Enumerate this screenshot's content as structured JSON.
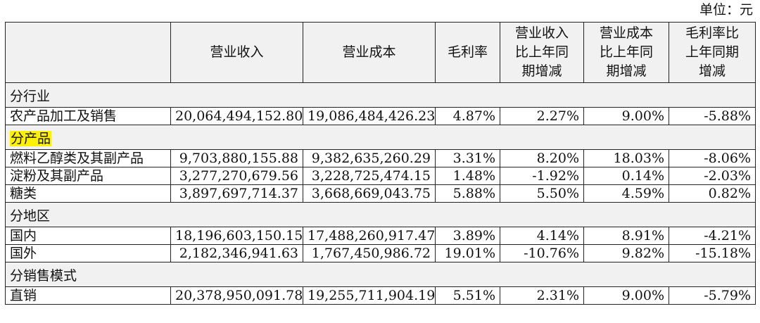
{
  "unit_label": "单位：元",
  "headers": {
    "blank": "",
    "revenue": "营业收入",
    "cost": "营业成本",
    "margin": "毛利率",
    "revenue_yoy": [
      "营业收入",
      "比上年同",
      "期增减"
    ],
    "cost_yoy": [
      "营业成本",
      "比上年同",
      "期增减"
    ],
    "margin_yoy": [
      "毛利率比",
      "上年同期",
      "增减"
    ]
  },
  "sections": [
    {
      "title": "分行业",
      "highlighted": false,
      "rows": [
        {
          "name": "农产品加工及销售",
          "revenue": "20,064,494,152.80",
          "cost": "19,086,484,426.23",
          "margin": "4.87%",
          "revenue_yoy": "2.27%",
          "cost_yoy": "9.00%",
          "margin_yoy": "-5.88%"
        }
      ]
    },
    {
      "title": "分产品",
      "highlighted": true,
      "highlight_color": "#fff200",
      "rows": [
        {
          "name": "燃料乙醇类及其副产品",
          "revenue": "9,703,880,155.88",
          "cost": "9,382,635,260.29",
          "margin": "3.31%",
          "revenue_yoy": "8.20%",
          "cost_yoy": "18.03%",
          "margin_yoy": "-8.06%"
        },
        {
          "name": "淀粉及其副产品",
          "revenue": "3,277,270,679.56",
          "cost": "3,228,725,474.15",
          "margin": "1.48%",
          "revenue_yoy": "-1.92%",
          "cost_yoy": "0.14%",
          "margin_yoy": "-2.03%"
        },
        {
          "name": "糖类",
          "revenue": "3,897,697,714.37",
          "cost": "3,668,669,043.75",
          "margin": "5.88%",
          "revenue_yoy": "5.50%",
          "cost_yoy": "4.59%",
          "margin_yoy": "0.82%"
        }
      ]
    },
    {
      "title": "分地区",
      "highlighted": false,
      "rows": [
        {
          "name": "国内",
          "revenue": "18,196,603,150.15",
          "cost": "17,488,260,917.47",
          "margin": "3.89%",
          "revenue_yoy": "4.14%",
          "cost_yoy": "8.91%",
          "margin_yoy": "-4.21%"
        },
        {
          "name": "国外",
          "revenue": "2,182,346,941.63",
          "cost": "1,767,450,986.72",
          "margin": "19.01%",
          "revenue_yoy": "-10.76%",
          "cost_yoy": "9.82%",
          "margin_yoy": "-15.18%"
        }
      ]
    },
    {
      "title": "分销售模式",
      "highlighted": false,
      "rows": [
        {
          "name": "直销",
          "revenue": "20,378,950,091.78",
          "cost": "19,255,711,904.19",
          "margin": "5.51%",
          "revenue_yoy": "2.31%",
          "cost_yoy": "9.00%",
          "margin_yoy": "-5.79%"
        }
      ]
    }
  ]
}
